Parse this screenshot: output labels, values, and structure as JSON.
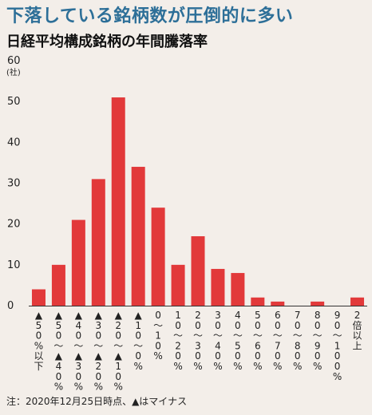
{
  "headline": "下落している銘柄数が圧倒的に多い",
  "note": "注：2020年12月25日時点、▲はマイナス",
  "colors": {
    "bar": "#e2393a",
    "headline": "#2d6f98",
    "background": "#f3eee9"
  },
  "chart_data": {
    "type": "bar",
    "title": "日経平均構成銘柄の年間騰落率",
    "ylabel": "(社)",
    "ylim": [
      0,
      60
    ],
    "yticks": [
      "0",
      "10",
      "20",
      "30",
      "40",
      "50",
      "60"
    ],
    "categories": [
      "▲50%以下",
      "▲50~▲40%",
      "▲40~▲30%",
      "▲30~▲20%",
      "▲20~▲10%",
      "▲10~0%",
      "0~10%",
      "10~20%",
      "20~30%",
      "30~40%",
      "40~50%",
      "50~60%",
      "60~70%",
      "70~80%",
      "80~90%",
      "90~100%",
      "2倍以上"
    ],
    "values": [
      4,
      10,
      21,
      31,
      51,
      34,
      24,
      10,
      17,
      9,
      8,
      2,
      1,
      0,
      1,
      0,
      2
    ],
    "grid": false,
    "legend": "none"
  }
}
